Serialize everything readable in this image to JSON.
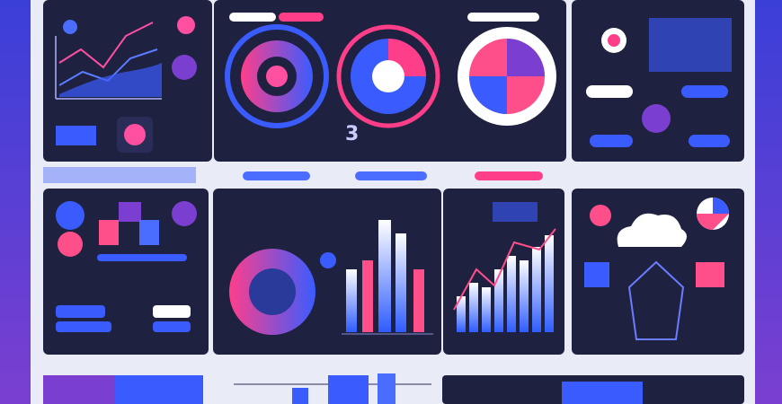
{
  "gauge_label": "3"
}
